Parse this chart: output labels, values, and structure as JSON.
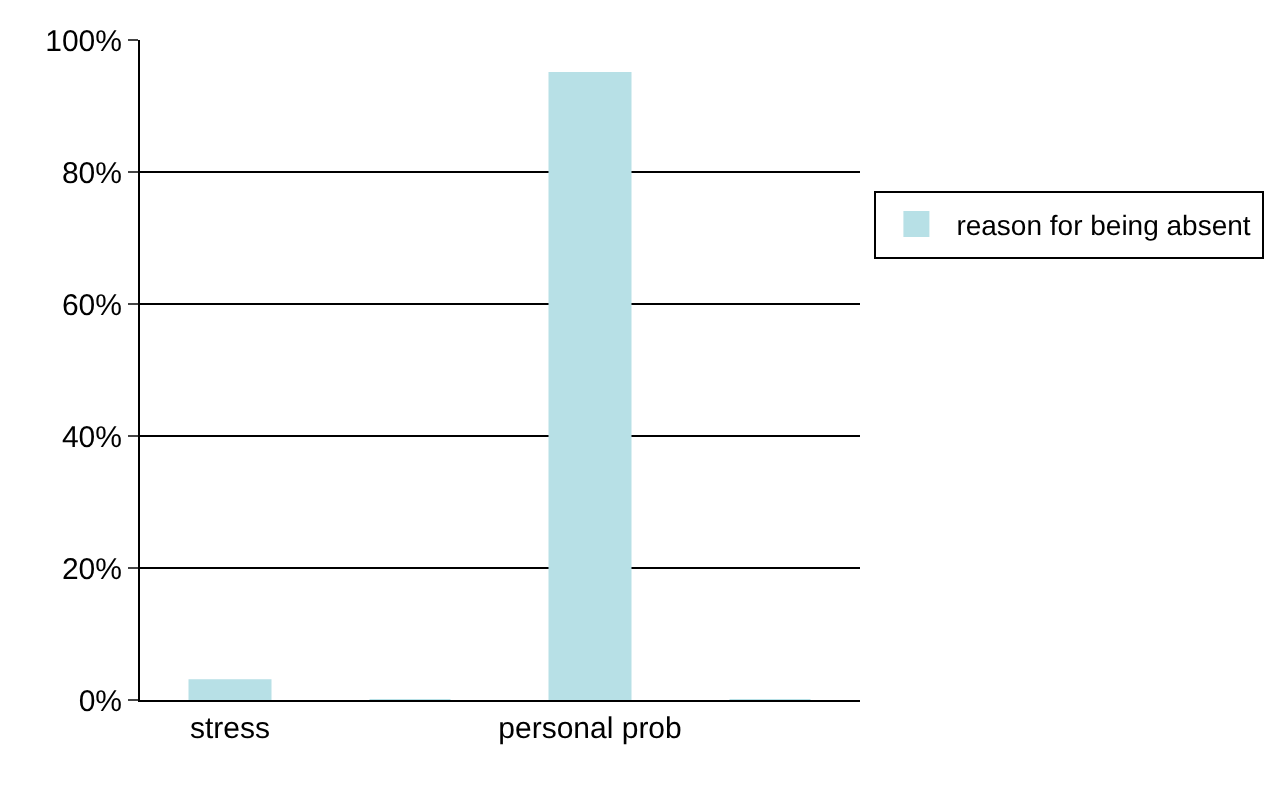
{
  "chart_data": {
    "type": "bar",
    "categories": [
      "stress",
      null,
      "personal prob",
      null
    ],
    "series": [
      {
        "name": "reason for being absent",
        "color": "#b7e0e6",
        "values": [
          3,
          0,
          95,
          0
        ]
      }
    ],
    "ylim": [
      0,
      100
    ],
    "yticks": [
      {
        "value": 0,
        "label": "0%"
      },
      {
        "value": 20,
        "label": "20%"
      },
      {
        "value": 40,
        "label": "40%"
      },
      {
        "value": 60,
        "label": "60%"
      },
      {
        "value": 80,
        "label": "80%"
      },
      {
        "value": 100,
        "label": "100%"
      }
    ],
    "grid": "y",
    "legend": "right"
  }
}
